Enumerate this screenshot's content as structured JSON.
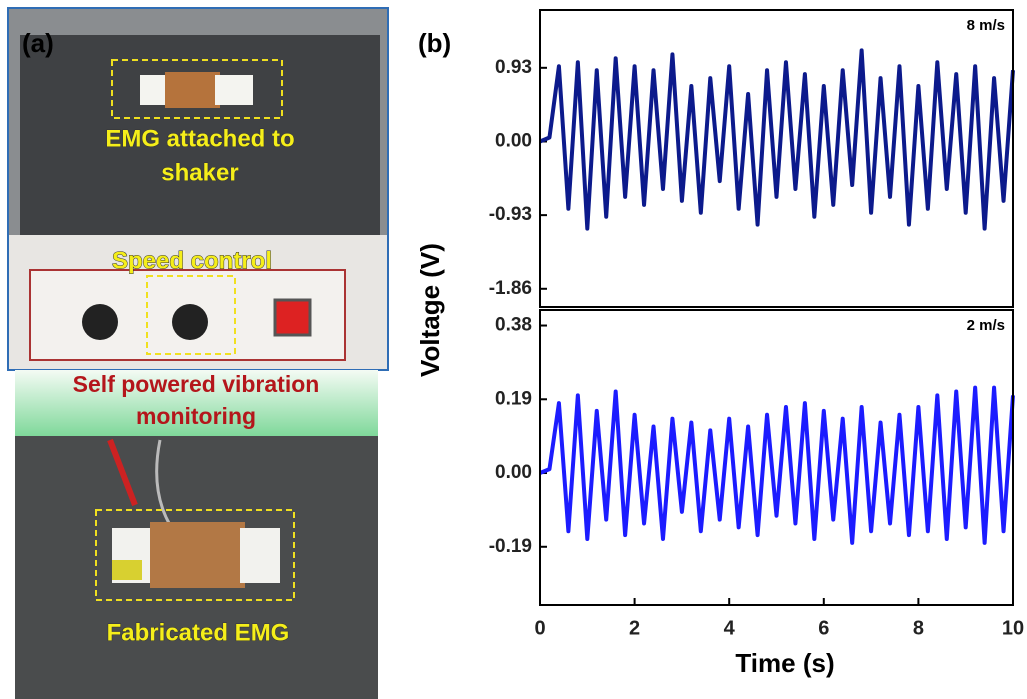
{
  "panel_a": {
    "label": "(a)",
    "shaker_caption": [
      "EMG attached to",
      "shaker"
    ],
    "speed_caption": "Speed control",
    "banner": [
      "Self powered vibration",
      "monitoring"
    ],
    "emg_caption": "Fabricated EMG"
  },
  "panel_b_label": "(b)",
  "chart_data": [
    {
      "type": "line",
      "annotation": "8 m/s",
      "ylabel": "Voltage (V)",
      "x": [
        0,
        0.2,
        0.4,
        0.6,
        0.8,
        1,
        1.2,
        1.4,
        1.6,
        1.8,
        2,
        2.2,
        2.4,
        2.6,
        2.8,
        3,
        3.2,
        3.4,
        3.6,
        3.8,
        4,
        4.2,
        4.4,
        4.6,
        4.8,
        5,
        5.2,
        5.4,
        5.6,
        5.8,
        6,
        6.2,
        6.4,
        6.6,
        6.8,
        7,
        7.2,
        7.4,
        7.6,
        7.8,
        8,
        8.2,
        8.4,
        8.6,
        8.8,
        9,
        9.2,
        9.4,
        9.6,
        9.8,
        10
      ],
      "series": [
        {
          "color": "#0c1a8c",
          "values": [
            0,
            0.05,
            0.95,
            -0.85,
            1.0,
            -1.1,
            0.9,
            -0.95,
            1.05,
            -0.7,
            0.95,
            -0.8,
            0.9,
            -0.6,
            1.1,
            -0.75,
            0.7,
            -0.9,
            0.8,
            -0.5,
            0.95,
            -0.85,
            0.6,
            -1.05,
            0.9,
            -0.7,
            1.0,
            -0.6,
            0.85,
            -0.95,
            0.7,
            -0.8,
            0.9,
            -0.55,
            1.15,
            -0.9,
            0.8,
            -0.7,
            0.95,
            -1.05,
            0.7,
            -0.85,
            1.0,
            -0.6,
            0.85,
            -0.9,
            0.95,
            -1.1,
            0.8,
            -0.75,
            0.9
          ]
        }
      ],
      "xlim": [
        0,
        10
      ],
      "ylim": [
        -2.09,
        1.66
      ],
      "yticks": [
        0.93,
        {
          "value": 0,
          "label": "0.00"
        },
        -0.93,
        -1.86
      ]
    },
    {
      "type": "line",
      "annotation": "2 m/s",
      "xlabel": "Time (s)",
      "x": [
        0,
        0.2,
        0.4,
        0.6,
        0.8,
        1,
        1.2,
        1.4,
        1.6,
        1.8,
        2,
        2.2,
        2.4,
        2.6,
        2.8,
        3,
        3.2,
        3.4,
        3.6,
        3.8,
        4,
        4.2,
        4.4,
        4.6,
        4.8,
        5,
        5.2,
        5.4,
        5.6,
        5.8,
        6,
        6.2,
        6.4,
        6.6,
        6.8,
        7,
        7.2,
        7.4,
        7.6,
        7.8,
        8,
        8.2,
        8.4,
        8.6,
        8.8,
        9,
        9.2,
        9.4,
        9.6,
        9.8,
        10
      ],
      "series": [
        {
          "color": "#1c1cff",
          "values": [
            0,
            0.01,
            0.18,
            -0.15,
            0.2,
            -0.17,
            0.16,
            -0.12,
            0.21,
            -0.16,
            0.15,
            -0.13,
            0.12,
            -0.17,
            0.14,
            -0.1,
            0.13,
            -0.15,
            0.11,
            -0.12,
            0.14,
            -0.14,
            0.12,
            -0.16,
            0.15,
            -0.11,
            0.17,
            -0.13,
            0.18,
            -0.17,
            0.16,
            -0.12,
            0.14,
            -0.18,
            0.17,
            -0.15,
            0.13,
            -0.13,
            0.15,
            -0.16,
            0.17,
            -0.15,
            0.2,
            -0.17,
            0.21,
            -0.14,
            0.22,
            -0.18,
            0.22,
            -0.15,
            0.2
          ]
        }
      ],
      "xlim": [
        0,
        10
      ],
      "ylim": [
        -0.34,
        0.42
      ],
      "xticks": [
        0,
        2,
        4,
        6,
        8,
        10
      ],
      "yticks": [
        0.38,
        0.19,
        {
          "value": 0,
          "label": "0.00"
        },
        -0.19
      ]
    }
  ]
}
